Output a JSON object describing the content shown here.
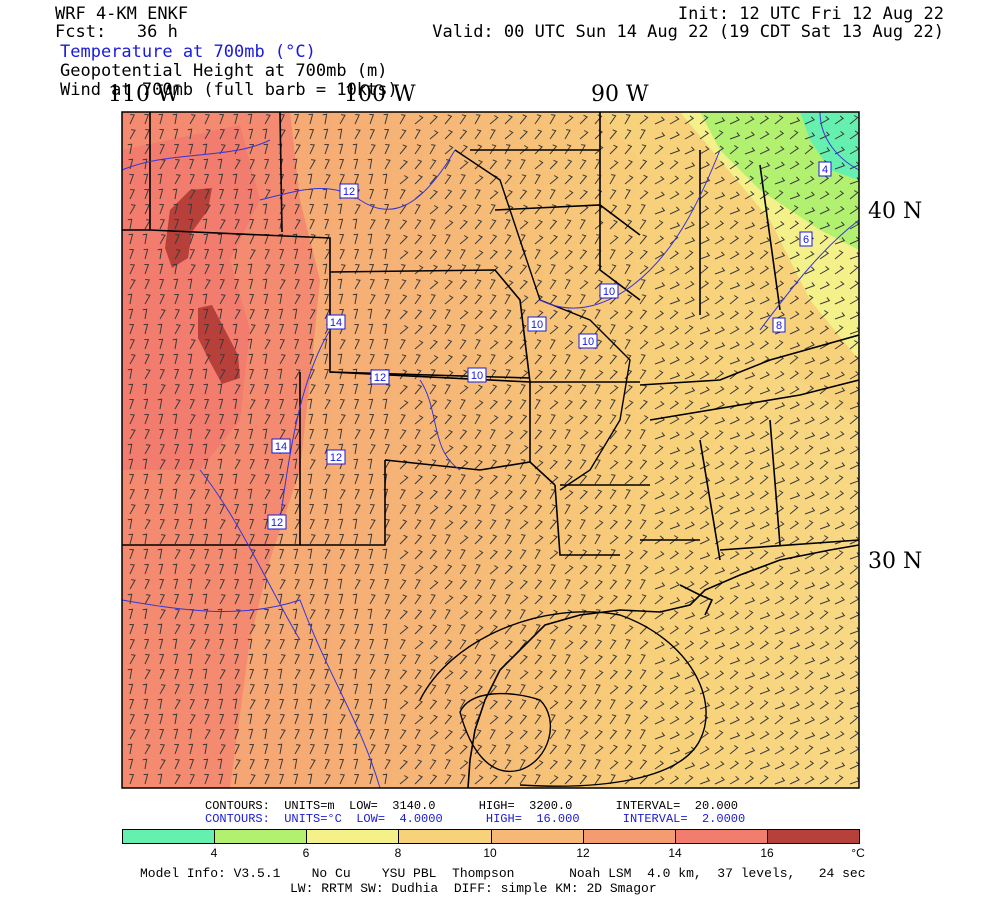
{
  "header": {
    "model": "WRF 4-KM ENKF",
    "fcst_label": "Fcst:",
    "fcst_value": "36 h",
    "init": "Init: 12 UTC Fri 12 Aug 22",
    "valid": "Valid: 00 UTC Sun 14 Aug 22 (19 CDT Sat 13 Aug 22)",
    "field1": "Temperature at 700mb (°C)",
    "field2": "Geopotential Height at 700mb (m)",
    "field3": "Wind at 700mb (full barb = 10kts)"
  },
  "longitude_labels": [
    "110 W",
    "100 W",
    "90 W"
  ],
  "latitude_labels": [
    "40 N",
    "30 N"
  ],
  "contour_labels": [
    "12",
    "14",
    "14",
    "12",
    "12",
    "12",
    "10",
    "10",
    "10",
    "10",
    "4",
    "6",
    "8"
  ],
  "contours_height": {
    "label": "CONTOURS:",
    "units": "UNITS=m",
    "low": "LOW=",
    "low_val": "3140.0",
    "high": "HIGH=",
    "high_val": "3200.0",
    "interval": "INTERVAL=",
    "interval_val": "20.000"
  },
  "contours_temp": {
    "label": "CONTOURS:",
    "units": "UNITS=°C",
    "low": "LOW=",
    "low_val": "4.0000",
    "high": "HIGH=",
    "high_val": "16.000",
    "interval": "INTERVAL=",
    "interval_val": "2.0000"
  },
  "colorbar": {
    "labels": [
      "4",
      "6",
      "8",
      "10",
      "12",
      "14",
      "16"
    ],
    "unit": "°C",
    "colors": [
      "#66f0b0",
      "#b2f070",
      "#f4f08a",
      "#f8d27a",
      "#f6b877",
      "#f59b72",
      "#f27c6e",
      "#b8403a"
    ]
  },
  "model_info": {
    "line1": "Model Info: V3.5.1    No Cu    YSU PBL  Thompson       Noah LSM  4.0 km,  37 levels,   24 sec",
    "line2": "LW: RRTM SW: Dudhia  DIFF: simple KM: 2D Smagor"
  }
}
